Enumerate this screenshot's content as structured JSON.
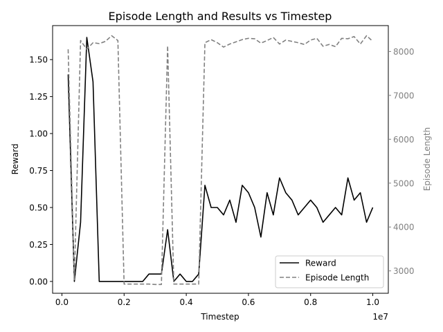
{
  "chart_data": {
    "type": "line",
    "title": "Episode Length and Results vs Timestep",
    "xlabel": "Timestep",
    "ylabel_left": "Reward",
    "ylabel_right": "Episode Length",
    "x_offset_label": "1e7",
    "x_unit": 10000000,
    "xlim": [
      -0.03,
      1.05
    ],
    "ylim_left": [
      -0.08,
      1.73
    ],
    "ylim_right": [
      2490,
      8590
    ],
    "x_ticks": [
      0.0,
      0.2,
      0.4,
      0.6,
      0.8,
      1.0
    ],
    "x_tick_labels": [
      "0.0",
      "0.2",
      "0.4",
      "0.6",
      "0.8",
      "1.0"
    ],
    "y_left_ticks": [
      0.0,
      0.25,
      0.5,
      0.75,
      1.0,
      1.25,
      1.5
    ],
    "y_left_tick_labels": [
      "0.00",
      "0.25",
      "0.50",
      "0.75",
      "1.00",
      "1.25",
      "1.50"
    ],
    "y_right_ticks": [
      3000,
      4000,
      5000,
      6000,
      7000,
      8000
    ],
    "y_right_tick_labels": [
      "3000",
      "4000",
      "5000",
      "6000",
      "7000",
      "8000"
    ],
    "legend_position": "bottom-right",
    "grid": false,
    "series": [
      {
        "name": "Reward",
        "axis": "left",
        "color": "#000000",
        "style": "solid",
        "x": [
          0.02,
          0.04,
          0.06,
          0.08,
          0.1,
          0.12,
          0.14,
          0.16,
          0.18,
          0.2,
          0.22,
          0.24,
          0.26,
          0.28,
          0.3,
          0.32,
          0.34,
          0.36,
          0.38,
          0.4,
          0.42,
          0.44,
          0.46,
          0.48,
          0.5,
          0.52,
          0.54,
          0.56,
          0.58,
          0.6,
          0.62,
          0.64,
          0.66,
          0.68,
          0.7,
          0.72,
          0.74,
          0.76,
          0.78,
          0.8,
          0.82,
          0.84,
          0.86,
          0.88,
          0.9,
          0.92,
          0.94,
          0.96,
          0.98,
          1.0
        ],
        "values": [
          1.4,
          0.0,
          0.4,
          1.65,
          1.35,
          0.0,
          0.0,
          0.0,
          0.0,
          0.0,
          0.0,
          0.0,
          0.0,
          0.05,
          0.05,
          0.05,
          0.35,
          0.0,
          0.05,
          0.0,
          0.0,
          0.05,
          0.65,
          0.5,
          0.5,
          0.45,
          0.55,
          0.4,
          0.65,
          0.6,
          0.5,
          0.3,
          0.6,
          0.45,
          0.7,
          0.6,
          0.55,
          0.45,
          0.5,
          0.55,
          0.5,
          0.4,
          0.45,
          0.5,
          0.45,
          0.7,
          0.55,
          0.6,
          0.4,
          0.5
        ]
      },
      {
        "name": "Episode Length",
        "axis": "right",
        "color": "#808080",
        "style": "dashed",
        "x": [
          0.02,
          0.04,
          0.06,
          0.08,
          0.1,
          0.12,
          0.14,
          0.16,
          0.18,
          0.2,
          0.22,
          0.24,
          0.26,
          0.28,
          0.3,
          0.32,
          0.34,
          0.36,
          0.38,
          0.4,
          0.42,
          0.44,
          0.46,
          0.48,
          0.5,
          0.52,
          0.54,
          0.56,
          0.58,
          0.6,
          0.62,
          0.64,
          0.66,
          0.68,
          0.7,
          0.72,
          0.74,
          0.76,
          0.78,
          0.8,
          0.82,
          0.84,
          0.86,
          0.88,
          0.9,
          0.92,
          0.94,
          0.96,
          0.98,
          1.0
        ],
        "values": [
          8050,
          2800,
          8250,
          8050,
          8200,
          8180,
          8230,
          8360,
          8250,
          2700,
          2700,
          2700,
          2700,
          2700,
          2690,
          2690,
          8130,
          2700,
          2700,
          2700,
          2700,
          2700,
          8200,
          8270,
          8200,
          8100,
          8170,
          8220,
          8270,
          8300,
          8290,
          8190,
          8250,
          8320,
          8170,
          8260,
          8230,
          8200,
          8160,
          8260,
          8300,
          8120,
          8160,
          8110,
          8300,
          8290,
          8340,
          8170,
          8360,
          8230
        ]
      }
    ]
  }
}
